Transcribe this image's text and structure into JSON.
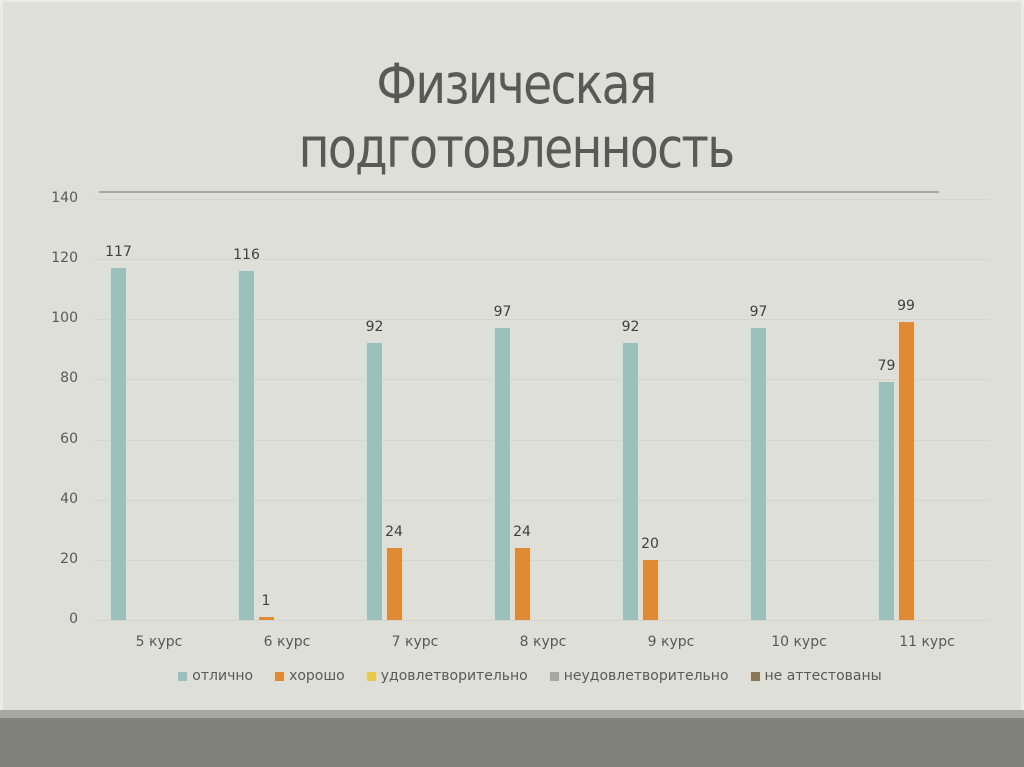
{
  "slide": {
    "title_line1": "Физическая",
    "title_line2": "подготовленность"
  },
  "colors": {
    "background": "#dfdfd9",
    "title": "#595a55",
    "footer_light": "#a8a8a3",
    "footer_dark": "#80817a"
  },
  "chart_data": {
    "type": "bar",
    "title": "Физическая подготовленность",
    "xlabel": "",
    "ylabel": "",
    "ylim": [
      0,
      140
    ],
    "yticks": [
      "0",
      "20",
      "40",
      "60",
      "80",
      "100",
      "120",
      "140"
    ],
    "grid": true,
    "legend_position": "bottom",
    "categories": [
      "5 курс",
      "6 курс",
      "7 курс",
      "8 курс",
      "9 курс",
      "10 курс",
      "11 курс"
    ],
    "series": [
      {
        "name": "отлично",
        "color": "#9bbfbd",
        "values": [
          117,
          116,
          92,
          97,
          92,
          97,
          79
        ]
      },
      {
        "name": "хорошо",
        "color": "#df8a35",
        "values": [
          null,
          1,
          24,
          24,
          20,
          null,
          99
        ]
      },
      {
        "name": "удовлетворительно",
        "color": "#e8c94a",
        "values": [
          null,
          null,
          null,
          null,
          null,
          null,
          null
        ]
      },
      {
        "name": "неудовлетворительно",
        "color": "#a8a8a3",
        "values": [
          null,
          null,
          null,
          null,
          null,
          null,
          null
        ]
      },
      {
        "name": "не аттестованы",
        "color": "#8c7654",
        "values": [
          null,
          null,
          null,
          null,
          null,
          null,
          null
        ]
      }
    ]
  }
}
